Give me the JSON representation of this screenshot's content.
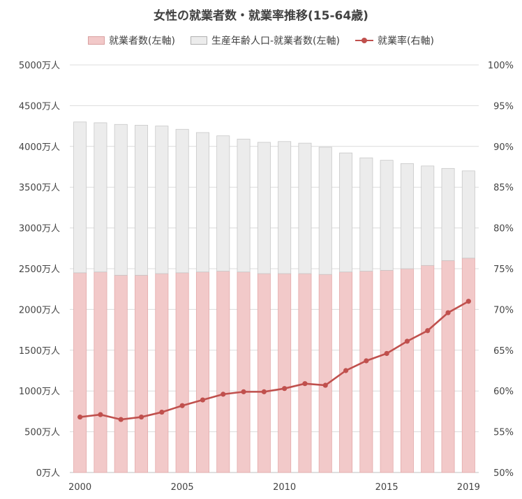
{
  "chart_data": {
    "type": "bar",
    "title": "女性の就業者数・就業率推移(15-64歳)",
    "stacked": true,
    "x": [
      2000,
      2001,
      2002,
      2003,
      2004,
      2005,
      2006,
      2007,
      2008,
      2009,
      2010,
      2011,
      2012,
      2013,
      2014,
      2015,
      2016,
      2017,
      2018,
      2019
    ],
    "x_tick_labels": [
      "2000",
      "2005",
      "2010",
      "2015",
      "2019"
    ],
    "y_left": {
      "min": 0,
      "max": 5000,
      "step": 500,
      "tick_labels": [
        "0万人",
        "500万人",
        "1000万人",
        "1500万人",
        "2000万人",
        "2500万人",
        "3000万人",
        "3500万人",
        "4000万人",
        "4500万人",
        "5000万人"
      ]
    },
    "y_right": {
      "min": 50,
      "max": 100,
      "step": 5,
      "tick_labels": [
        "50%",
        "55%",
        "60%",
        "65%",
        "70%",
        "75%",
        "80%",
        "85%",
        "90%",
        "95%",
        "100%"
      ]
    },
    "series": [
      {
        "name": "就業者数(左軸)",
        "kind": "bar",
        "axis": "left",
        "color": "#f2c9c9",
        "values": [
          2450,
          2460,
          2420,
          2420,
          2440,
          2450,
          2460,
          2470,
          2460,
          2440,
          2440,
          2440,
          2430,
          2460,
          2470,
          2480,
          2500,
          2540,
          2600,
          2630
        ]
      },
      {
        "name": "生産年齢人口-就業者数(左軸)",
        "kind": "bar",
        "axis": "left",
        "color": "#ececec",
        "values": [
          1850,
          1830,
          1850,
          1840,
          1810,
          1760,
          1710,
          1660,
          1630,
          1610,
          1620,
          1600,
          1560,
          1460,
          1390,
          1350,
          1290,
          1220,
          1130,
          1070
        ]
      },
      {
        "name": "就業率(右軸)",
        "kind": "line",
        "axis": "right",
        "color": "#c0504d",
        "values": [
          56.8,
          57.1,
          56.5,
          56.8,
          57.4,
          58.2,
          58.9,
          59.6,
          59.9,
          59.9,
          60.3,
          60.9,
          60.7,
          62.5,
          63.7,
          64.6,
          66.1,
          67.4,
          69.6,
          71.0
        ]
      }
    ],
    "grid": true,
    "legend_position": "top"
  }
}
